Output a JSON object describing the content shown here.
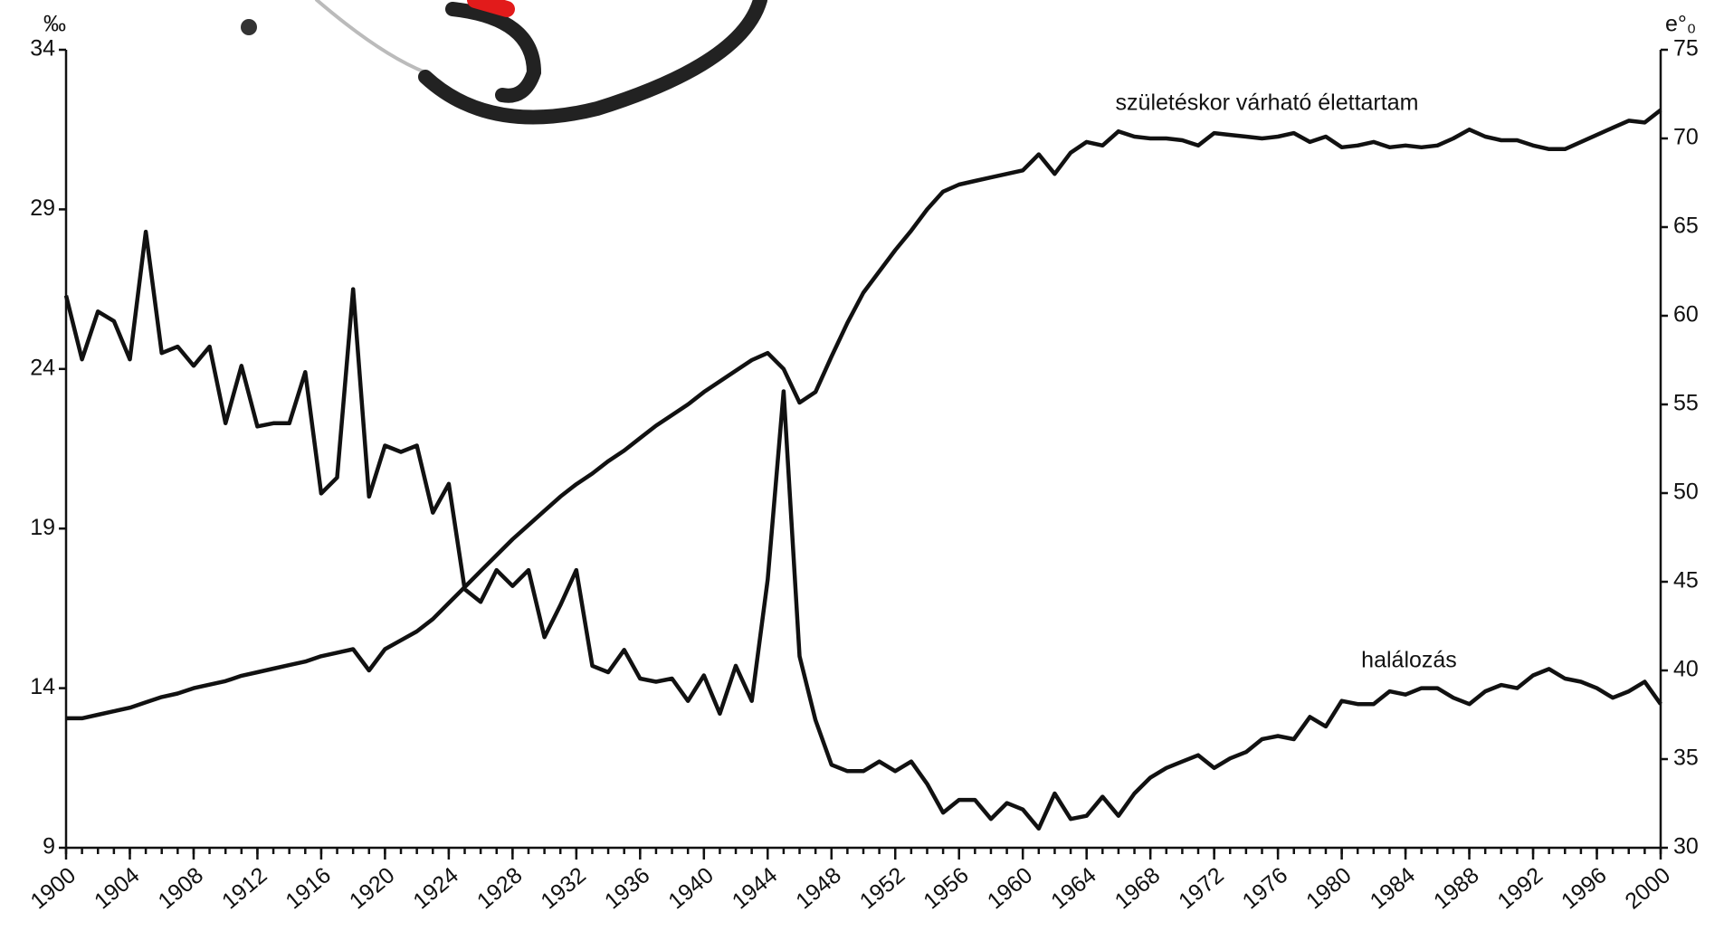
{
  "chart_data": {
    "type": "line",
    "y_label": "‰",
    "y2_label": "e°₀",
    "annotations": [
      "születéskor várható élettartam",
      "halálozás"
    ],
    "x": [
      1900,
      1901,
      1902,
      1903,
      1904,
      1905,
      1906,
      1907,
      1908,
      1909,
      1910,
      1911,
      1912,
      1913,
      1914,
      1915,
      1916,
      1917,
      1918,
      1919,
      1920,
      1921,
      1922,
      1923,
      1924,
      1925,
      1926,
      1927,
      1928,
      1929,
      1930,
      1931,
      1932,
      1933,
      1934,
      1935,
      1936,
      1937,
      1938,
      1939,
      1940,
      1941,
      1942,
      1943,
      1944,
      1945,
      1946,
      1947,
      1948,
      1949,
      1950,
      1951,
      1952,
      1953,
      1954,
      1955,
      1956,
      1957,
      1958,
      1959,
      1960,
      1961,
      1962,
      1963,
      1964,
      1965,
      1966,
      1967,
      1968,
      1969,
      1970,
      1971,
      1972,
      1973,
      1974,
      1975,
      1976,
      1977,
      1978,
      1979,
      1980,
      1981,
      1982,
      1983,
      1984,
      1985,
      1986,
      1987,
      1988,
      1989,
      1990,
      1991,
      1992,
      1993,
      1994,
      1995,
      1996,
      1997,
      1998,
      1999,
      2000
    ],
    "series": [
      {
        "name": "halálozás",
        "color": "#111111",
        "axis": "y",
        "values": [
          26.3,
          24.3,
          25.8,
          25.5,
          24.3,
          28.3,
          24.5,
          24.7,
          24.1,
          24.7,
          22.3,
          24.1,
          22.2,
          22.3,
          22.3,
          23.9,
          20.1,
          20.6,
          26.5,
          20.0,
          21.6,
          21.4,
          21.6,
          19.5,
          20.4,
          17.1,
          16.7,
          17.7,
          17.2,
          17.7,
          15.6,
          16.6,
          17.7,
          14.7,
          14.5,
          15.2,
          14.3,
          14.2,
          14.3,
          13.6,
          14.4,
          13.2,
          14.7,
          13.6,
          17.4,
          23.3,
          15.0,
          13.0,
          11.6,
          11.4,
          11.4,
          11.7,
          11.4,
          11.7,
          11.0,
          10.1,
          10.5,
          10.5,
          9.9,
          10.4,
          10.2,
          9.6,
          10.7,
          9.9,
          10.0,
          10.6,
          10.0,
          10.7,
          11.2,
          11.5,
          11.7,
          11.9,
          11.5,
          11.8,
          12.0,
          12.4,
          12.5,
          12.4,
          13.1,
          12.8,
          13.6,
          13.5,
          13.5,
          13.9,
          13.8,
          14.0,
          14.0,
          13.7,
          13.5,
          13.9,
          14.1,
          14.0,
          14.4,
          14.6,
          14.3,
          14.2,
          14.0,
          13.7,
          13.9,
          14.2,
          13.5
        ]
      },
      {
        "name": "születéskor várható élettartam",
        "color": "#111111",
        "axis": "y2",
        "values": [
          37.3,
          37.3,
          37.5,
          37.7,
          37.9,
          38.2,
          38.5,
          38.7,
          39.0,
          39.2,
          39.4,
          39.7,
          39.9,
          40.1,
          40.3,
          40.5,
          40.8,
          41.0,
          41.2,
          40.0,
          41.2,
          41.7,
          42.2,
          42.9,
          43.8,
          44.7,
          45.6,
          46.5,
          47.4,
          48.2,
          49.0,
          49.8,
          50.5,
          51.1,
          51.8,
          52.4,
          53.1,
          53.8,
          54.4,
          55.0,
          55.7,
          56.3,
          56.9,
          57.5,
          57.9,
          57.0,
          55.1,
          55.7,
          57.7,
          59.6,
          61.3,
          62.5,
          63.7,
          64.8,
          66.0,
          67.0,
          67.4,
          67.6,
          67.8,
          68.0,
          68.2,
          69.1,
          68.0,
          69.2,
          69.8,
          69.6,
          70.4,
          70.1,
          70.0,
          70.0,
          69.9,
          69.6,
          70.3,
          70.2,
          70.1,
          70.0,
          70.1,
          70.3,
          69.8,
          70.1,
          69.5,
          69.6,
          69.8,
          69.5,
          69.6,
          69.5,
          69.6,
          70.0,
          70.5,
          70.1,
          69.9,
          69.9,
          69.6,
          69.4,
          69.4,
          69.8,
          70.2,
          70.6,
          71.0,
          70.9,
          71.6
        ]
      }
    ],
    "xlim": [
      1900,
      2000
    ],
    "xticks": [
      1900,
      1904,
      1908,
      1912,
      1916,
      1920,
      1924,
      1928,
      1932,
      1936,
      1940,
      1944,
      1948,
      1952,
      1956,
      1960,
      1964,
      1968,
      1972,
      1976,
      1980,
      1984,
      1988,
      1992,
      1996,
      2000
    ],
    "ylim": [
      9,
      34
    ],
    "yticks": [
      9,
      14,
      19,
      24,
      29,
      34
    ],
    "y2lim": [
      30,
      75
    ],
    "y2ticks": [
      30,
      35,
      40,
      45,
      50,
      55,
      60,
      65,
      70,
      75
    ],
    "grid": false
  }
}
